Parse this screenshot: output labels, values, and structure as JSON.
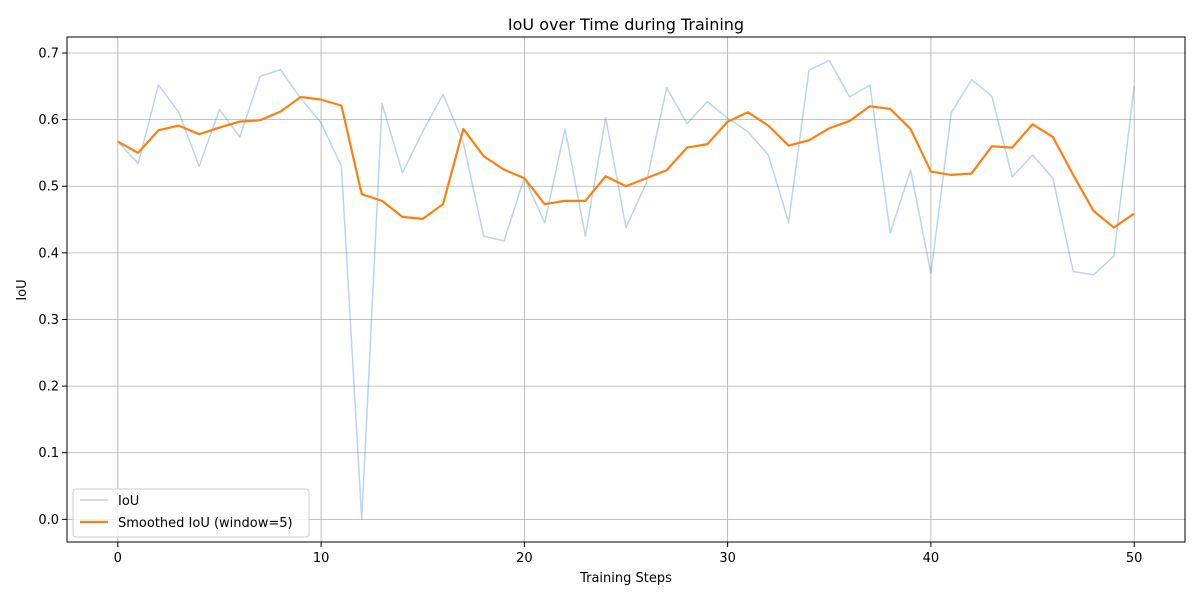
{
  "chart_data": {
    "type": "line",
    "title": "IoU over Time during Training",
    "xlabel": "Training Steps",
    "ylabel": "IoU",
    "xlim": [
      -2.5,
      52.5
    ],
    "ylim": [
      -0.034,
      0.724
    ],
    "xticks": [
      0,
      10,
      20,
      30,
      40,
      50
    ],
    "yticks": [
      0.0,
      0.1,
      0.2,
      0.3,
      0.4,
      0.5,
      0.6,
      0.7
    ],
    "xtick_labels": [
      "0",
      "10",
      "20",
      "30",
      "40",
      "50"
    ],
    "ytick_labels": [
      "0.0",
      "0.1",
      "0.2",
      "0.3",
      "0.4",
      "0.5",
      "0.6",
      "0.7"
    ],
    "grid": true,
    "legend_position": "lower-left",
    "x": [
      0,
      1,
      2,
      3,
      4,
      5,
      6,
      7,
      8,
      9,
      10,
      11,
      12,
      13,
      14,
      15,
      16,
      17,
      18,
      19,
      20,
      21,
      22,
      23,
      24,
      25,
      26,
      27,
      28,
      29,
      30,
      31,
      32,
      33,
      34,
      35,
      36,
      37,
      38,
      39,
      40,
      41,
      42,
      43,
      44,
      45,
      46,
      47,
      48,
      49,
      50
    ],
    "series": [
      {
        "name": "IoU",
        "color": "#1f77b4",
        "opacity": 0.3,
        "values": [
          0.567,
          0.534,
          0.652,
          0.611,
          0.53,
          0.615,
          0.574,
          0.665,
          0.675,
          0.632,
          0.595,
          0.53,
          0.0,
          0.624,
          0.52,
          0.582,
          0.638,
          0.565,
          0.425,
          0.418,
          0.513,
          0.445,
          0.586,
          0.425,
          0.603,
          0.438,
          0.505,
          0.648,
          0.594,
          0.627,
          0.602,
          0.582,
          0.547,
          0.446,
          0.674,
          0.689,
          0.634,
          0.652,
          0.43,
          0.524,
          0.369,
          0.61,
          0.66,
          0.635,
          0.514,
          0.547,
          0.512,
          0.372,
          0.367,
          0.395,
          0.65
        ]
      },
      {
        "name": "Smoothed IoU (window=5)",
        "color": "#ff7f0e",
        "opacity": 1,
        "values": [
          0.567,
          0.55,
          0.584,
          0.591,
          0.578,
          0.588,
          0.597,
          0.599,
          0.612,
          0.634,
          0.63,
          0.621,
          0.488,
          0.478,
          0.454,
          0.451,
          0.473,
          0.586,
          0.545,
          0.525,
          0.512,
          0.473,
          0.478,
          0.478,
          0.515,
          0.5,
          0.512,
          0.524,
          0.558,
          0.563,
          0.597,
          0.611,
          0.591,
          0.561,
          0.569,
          0.587,
          0.598,
          0.62,
          0.616,
          0.586,
          0.522,
          0.517,
          0.519,
          0.56,
          0.558,
          0.593,
          0.574,
          0.517,
          0.463,
          0.438,
          0.459
        ]
      }
    ]
  }
}
